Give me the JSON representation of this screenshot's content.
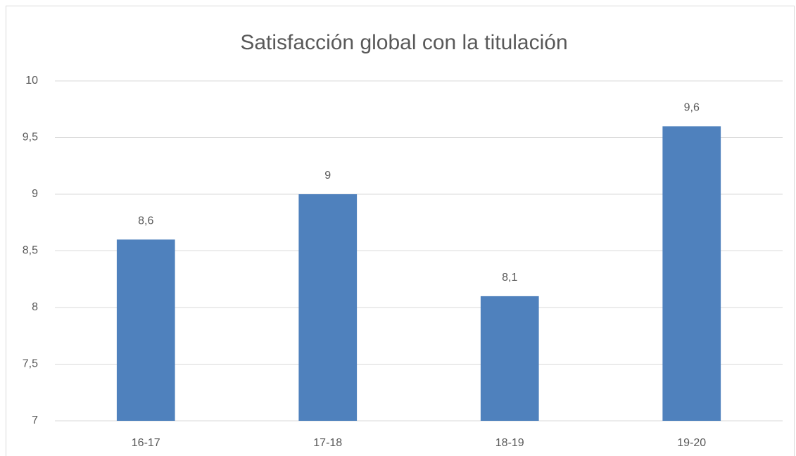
{
  "chart_data": {
    "type": "bar",
    "title": "Satisfacción global con la titulación",
    "categories": [
      "16-17",
      "17-18",
      "18-19",
      "19-20"
    ],
    "values": [
      8.6,
      9,
      8.1,
      9.6
    ],
    "value_labels": [
      "8,6",
      "9",
      "8,1",
      "9,6"
    ],
    "color": "#4f81bd",
    "ylim": [
      7,
      10
    ],
    "yticks": [
      7,
      {
        "value": 7.5,
        "label": "7,5"
      },
      8,
      {
        "value": 8.5,
        "label": "8,5"
      },
      9,
      {
        "value": 9.5,
        "label": "9,5"
      },
      10
    ],
    "grid": true
  }
}
